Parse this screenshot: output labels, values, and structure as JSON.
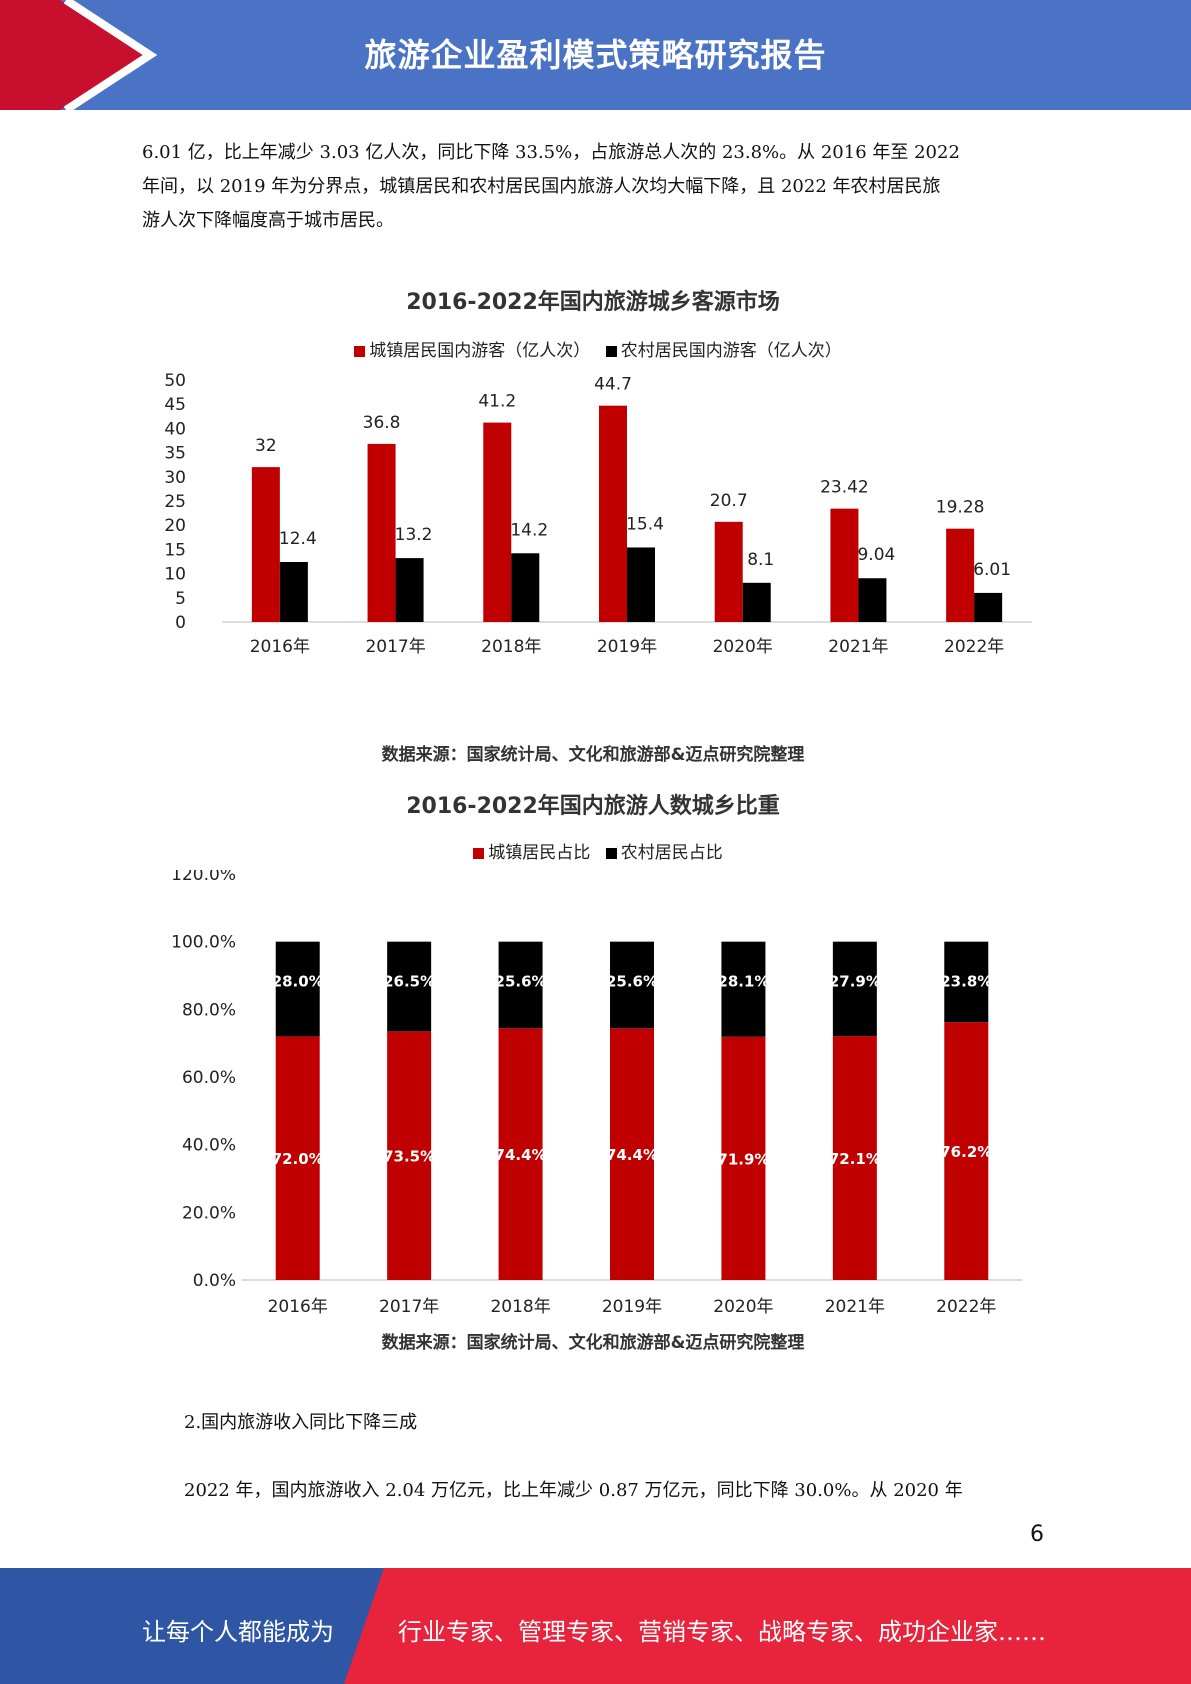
{
  "header": {
    "title": "旅游企业盈利模式策略研究报告"
  },
  "intro_lines": [
    "6.01 亿，比上年减少 3.03 亿人次，同比下降 33.5%，占旅游总人次的 23.8%。从 2016 年至 2022",
    "年间，以 2019 年为分界点，城镇居民和农村居民国内旅游人次均大幅下降，且 2022 年农村居民旅",
    "游人次下降幅度高于城市居民。"
  ],
  "chart_data": [
    {
      "type": "bar",
      "title": "2016-2022年国内旅游城乡客源市场",
      "categories": [
        "2016年",
        "2017年",
        "2018年",
        "2019年",
        "2020年",
        "2021年",
        "2022年"
      ],
      "series": [
        {
          "name": "城镇居民国内游客（亿人次）",
          "color": "#c00000",
          "values": [
            32,
            36.8,
            41.2,
            44.7,
            20.7,
            23.42,
            19.28
          ],
          "labels": [
            "32",
            "36.8",
            "41.2",
            "44.7",
            "20.7",
            "23.42",
            "19.28"
          ]
        },
        {
          "name": "农村居民国内游客（亿人次）",
          "color": "#000000",
          "values": [
            12.4,
            13.2,
            14.2,
            15.4,
            8.1,
            9.04,
            6.01
          ],
          "labels": [
            "12.4",
            "13.2",
            "14.2",
            "15.4",
            "8.1",
            "9.04",
            "6.01"
          ]
        }
      ],
      "yticks": [
        "0",
        "5",
        "10",
        "15",
        "20",
        "25",
        "30",
        "35",
        "40",
        "45",
        "50"
      ],
      "ylim": [
        0,
        50
      ],
      "legend_position": "top",
      "source": "数据来源：国家统计局、文化和旅游部&迈点研究院整理"
    },
    {
      "type": "bar",
      "stacked": true,
      "title": "2016-2022年国内旅游人数城乡比重",
      "categories": [
        "2016年",
        "2017年",
        "2018年",
        "2019年",
        "2020年",
        "2021年",
        "2022年"
      ],
      "series": [
        {
          "name": "城镇居民占比",
          "color": "#c00000",
          "values": [
            72.0,
            73.5,
            74.4,
            74.4,
            71.9,
            72.1,
            76.2
          ],
          "labels": [
            "72.0%",
            "73.5%",
            "74.4%",
            "74.4%",
            "71.9%",
            "72.1%",
            "76.2%"
          ]
        },
        {
          "name": "农村居民占比",
          "color": "#000000",
          "values": [
            28.0,
            26.5,
            25.6,
            25.6,
            28.1,
            27.9,
            23.8
          ],
          "labels": [
            "28.0%",
            "26.5%",
            "25.6%",
            "25.6%",
            "28.1%",
            "27.9%",
            "23.8%"
          ]
        }
      ],
      "yticks": [
        "0.0%",
        "20.0%",
        "40.0%",
        "60.0%",
        "80.0%",
        "100.0%",
        "120.0%"
      ],
      "ylim": [
        0,
        120
      ],
      "legend_position": "top",
      "source": "数据来源：国家统计局、文化和旅游部&迈点研究院整理"
    }
  ],
  "section2": {
    "heading": "2.国内旅游收入同比下降三成",
    "line": "2022 年，国内旅游收入 2.04 万亿元，比上年减少 0.87 万亿元，同比下降 30.0%。从 2020 年"
  },
  "page_number": "6",
  "footer": {
    "left": "让每个人都能成为",
    "right": "行业专家、管理专家、营销专家、战略专家、成功企业家……"
  },
  "colors": {
    "header_blue": "#4a73c5",
    "accent_red": "#c8102e",
    "footer_blue": "#2f56a5",
    "footer_red": "#e8233c"
  }
}
